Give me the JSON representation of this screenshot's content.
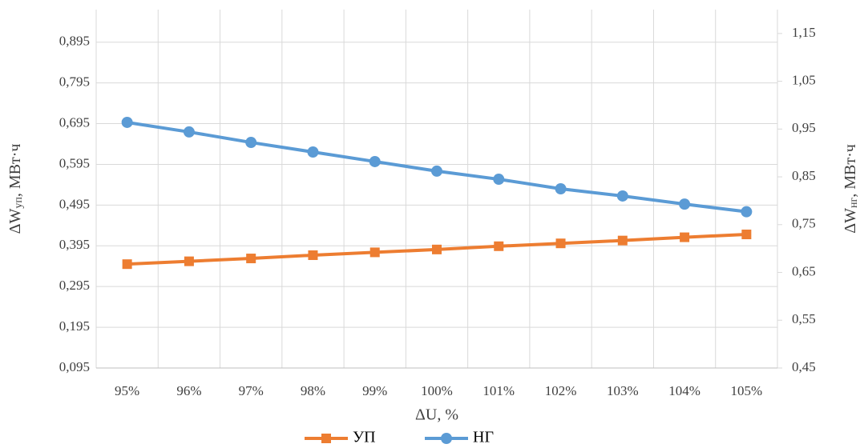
{
  "chart_data": {
    "type": "line",
    "x_label": "ΔU, %",
    "y_label": {
      "main": "ΔW",
      "sub": "уп",
      "unit": ", МВт·ч"
    },
    "y2_label": {
      "main": "ΔW",
      "sub": "нг",
      "unit": ", МВт·ч"
    },
    "categories": [
      "95%",
      "96%",
      "97%",
      "98%",
      "99%",
      "100%",
      "101%",
      "102%",
      "103%",
      "104%",
      "105%"
    ],
    "series": [
      {
        "name": "УП",
        "color": "#ed7d31",
        "marker": "square",
        "axis": "y",
        "values": [
          0.35,
          0.357,
          0.364,
          0.372,
          0.379,
          0.386,
          0.394,
          0.401,
          0.408,
          0.416,
          0.423
        ]
      },
      {
        "name": "НГ",
        "color": "#5b9bd5",
        "marker": "circle",
        "axis": "y2",
        "values": [
          0.964,
          0.944,
          0.922,
          0.902,
          0.882,
          0.862,
          0.845,
          0.825,
          0.81,
          0.793,
          0.777
        ]
      }
    ],
    "ylim": [
      0.095,
      0.975
    ],
    "yticks": [
      {
        "value": 0.095,
        "label": "0,095"
      },
      {
        "value": 0.195,
        "label": "0,195"
      },
      {
        "value": 0.295,
        "label": "0,295"
      },
      {
        "value": 0.395,
        "label": "0,395"
      },
      {
        "value": 0.495,
        "label": "0,495"
      },
      {
        "value": 0.595,
        "label": "0,595"
      },
      {
        "value": 0.695,
        "label": "0,695"
      },
      {
        "value": 0.795,
        "label": "0,795"
      },
      {
        "value": 0.895,
        "label": "0,895"
      }
    ],
    "y2lim": [
      0.45,
      1.2
    ],
    "y2ticks": [
      {
        "value": 0.45,
        "label": "0,45"
      },
      {
        "value": 0.55,
        "label": "0,55"
      },
      {
        "value": 0.65,
        "label": "0,65"
      },
      {
        "value": 0.75,
        "label": "0,75"
      },
      {
        "value": 0.85,
        "label": "0,85"
      },
      {
        "value": 0.95,
        "label": "0,95"
      },
      {
        "value": 1.05,
        "label": "1,05"
      },
      {
        "value": 1.15,
        "label": "1,15"
      }
    ],
    "grid": true,
    "legend": "bottom"
  }
}
